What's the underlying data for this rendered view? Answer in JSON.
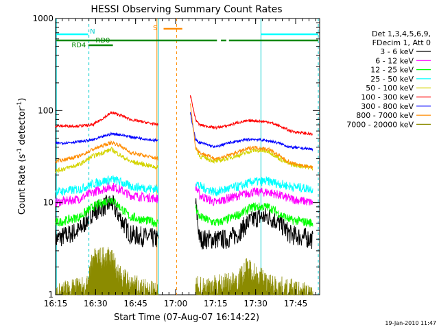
{
  "chart_data": {
    "type": "line",
    "title": "HESSI Observing Summary Count Rates",
    "xlabel": "Start Time (07-Aug-07 16:14:22)",
    "ylabel": "Count Rate (s",
    "ylabel_sup1": "-1",
    "ylabel_mid": " detector",
    "ylabel_sup2": "-1",
    "ylabel_end": ")",
    "y_scale": "log",
    "ylim": [
      1,
      1000
    ],
    "xlim_minutes": [
      16.0,
      115.0
    ],
    "x_ticks": [
      {
        "label": "16:15",
        "min": 16
      },
      {
        "label": "16:30",
        "min": 31
      },
      {
        "label": "16:45",
        "min": 46
      },
      {
        "label": "17:00",
        "min": 61
      },
      {
        "label": "17:15",
        "min": 76
      },
      {
        "label": "17:30",
        "min": 91
      },
      {
        "label": "17:45",
        "min": 106
      }
    ],
    "y_ticks": [
      {
        "label": "1",
        "value": 1
      },
      {
        "label": "10",
        "value": 10
      },
      {
        "label": "100",
        "value": 100
      },
      {
        "label": "1000",
        "value": 1000
      }
    ],
    "legend_header": [
      "Det 1,3,4,5,6,9,",
      "FDecim 1, Att 0"
    ],
    "legend_position": "right",
    "series": [
      {
        "name": "3 - 6 keV",
        "color": "#000000",
        "seg1": [
          [
            16,
            4
          ],
          [
            25,
            5
          ],
          [
            30,
            8
          ],
          [
            37,
            10
          ],
          [
            40,
            7
          ],
          [
            44,
            4.5
          ],
          [
            54.5,
            4
          ]
        ],
        "seg2": [
          [
            68.5,
            10
          ],
          [
            70,
            4
          ],
          [
            80,
            4
          ],
          [
            84,
            4.5
          ],
          [
            88,
            6
          ],
          [
            92,
            7
          ],
          [
            96,
            7
          ],
          [
            100,
            6
          ],
          [
            104,
            4.5
          ],
          [
            112.5,
            4
          ]
        ]
      },
      {
        "name": "6 - 12 keV",
        "color": "#ff00ff",
        "seg1": [
          [
            16,
            10
          ],
          [
            25,
            11
          ],
          [
            30,
            13
          ],
          [
            37,
            15
          ],
          [
            40,
            14
          ],
          [
            44,
            12
          ],
          [
            54.5,
            11
          ]
        ],
        "seg2": [
          [
            68.5,
            15
          ],
          [
            70,
            12
          ],
          [
            76,
            10
          ],
          [
            80,
            11
          ],
          [
            85,
            12
          ],
          [
            90,
            13
          ],
          [
            96,
            13
          ],
          [
            100,
            12
          ],
          [
            104,
            11
          ],
          [
            112.5,
            10
          ]
        ]
      },
      {
        "name": "12 - 25 keV",
        "color": "#00ff00",
        "seg1": [
          [
            16,
            6
          ],
          [
            25,
            7
          ],
          [
            30,
            9
          ],
          [
            37,
            11
          ],
          [
            40,
            9
          ],
          [
            44,
            7
          ],
          [
            54.5,
            6
          ]
        ],
        "seg2": [
          [
            68.5,
            9
          ],
          [
            70,
            7
          ],
          [
            76,
            6
          ],
          [
            80,
            6.5
          ],
          [
            85,
            7.5
          ],
          [
            90,
            9
          ],
          [
            96,
            9
          ],
          [
            100,
            7.5
          ],
          [
            104,
            6.5
          ],
          [
            112.5,
            6
          ]
        ]
      },
      {
        "name": "25 - 50 keV",
        "color": "#00ffff",
        "seg1": [
          [
            16,
            13
          ],
          [
            25,
            14
          ],
          [
            30,
            16
          ],
          [
            37,
            18
          ],
          [
            40,
            17
          ],
          [
            44,
            15
          ],
          [
            54.5,
            14
          ]
        ],
        "seg2": [
          [
            68.5,
            17
          ],
          [
            70,
            15
          ],
          [
            76,
            13
          ],
          [
            80,
            14
          ],
          [
            85,
            15
          ],
          [
            90,
            17
          ],
          [
            96,
            17
          ],
          [
            100,
            16
          ],
          [
            104,
            15
          ],
          [
            112.5,
            14
          ]
        ]
      },
      {
        "name": "50 - 100 keV",
        "color": "#d4d400",
        "seg1": [
          [
            16,
            22
          ],
          [
            25,
            26
          ],
          [
            30,
            32
          ],
          [
            37,
            38
          ],
          [
            40,
            33
          ],
          [
            44,
            28
          ],
          [
            54.5,
            24
          ]
        ],
        "seg2": [
          [
            68.5,
            40
          ],
          [
            70,
            32
          ],
          [
            76,
            28
          ],
          [
            80,
            30
          ],
          [
            85,
            33
          ],
          [
            90,
            37
          ],
          [
            96,
            36
          ],
          [
            100,
            30
          ],
          [
            104,
            26
          ],
          [
            112.5,
            24
          ]
        ]
      },
      {
        "name": "100 - 300 keV",
        "color": "#ff0000",
        "seg1": [
          [
            16,
            68
          ],
          [
            25,
            68
          ],
          [
            30,
            70
          ],
          [
            37,
            95
          ],
          [
            40,
            90
          ],
          [
            44,
            80
          ],
          [
            54.5,
            70
          ]
        ],
        "seg2": [
          [
            66.5,
            150
          ],
          [
            68.5,
            80
          ],
          [
            70,
            70
          ],
          [
            76,
            65
          ],
          [
            80,
            68
          ],
          [
            85,
            75
          ],
          [
            90,
            78
          ],
          [
            96,
            75
          ],
          [
            100,
            68
          ],
          [
            104,
            60
          ],
          [
            112.5,
            55
          ]
        ]
      },
      {
        "name": "300 - 800 keV",
        "color": "#0000ff",
        "seg1": [
          [
            16,
            44
          ],
          [
            25,
            46
          ],
          [
            30,
            48
          ],
          [
            37,
            56
          ],
          [
            40,
            55
          ],
          [
            44,
            52
          ],
          [
            54.5,
            47
          ]
        ],
        "seg2": [
          [
            66.5,
            95
          ],
          [
            68.5,
            48
          ],
          [
            70,
            45
          ],
          [
            76,
            40
          ],
          [
            80,
            44
          ],
          [
            85,
            47
          ],
          [
            90,
            49
          ],
          [
            96,
            47
          ],
          [
            100,
            44
          ],
          [
            104,
            40
          ],
          [
            112.5,
            38
          ]
        ]
      },
      {
        "name": "800 - 7000 keV",
        "color": "#ff8c00",
        "seg1": [
          [
            16,
            28
          ],
          [
            25,
            32
          ],
          [
            30,
            38
          ],
          [
            37,
            45
          ],
          [
            40,
            42
          ],
          [
            44,
            35
          ],
          [
            54.5,
            30
          ]
        ],
        "seg2": [
          [
            66.5,
            120
          ],
          [
            68.5,
            40
          ],
          [
            70,
            35
          ],
          [
            76,
            30
          ],
          [
            80,
            32
          ],
          [
            85,
            36
          ],
          [
            90,
            40
          ],
          [
            96,
            38
          ],
          [
            100,
            32
          ],
          [
            104,
            27
          ],
          [
            112.5,
            24
          ]
        ]
      },
      {
        "name": "7000 - 20000 keV",
        "color": "#8b8b00",
        "seg1": [
          [
            16,
            1
          ],
          [
            25,
            1.2
          ],
          [
            28,
            1.2
          ],
          [
            30,
            2.5
          ],
          [
            37,
            2.5
          ],
          [
            40,
            1.6
          ],
          [
            44,
            1.3
          ],
          [
            54.5,
            1
          ]
        ],
        "seg2": [
          [
            68.5,
            1.2
          ],
          [
            70,
            1.2
          ],
          [
            80,
            1.3
          ],
          [
            85,
            1.5
          ],
          [
            88,
            2
          ],
          [
            92,
            1.6
          ],
          [
            96,
            1.3
          ],
          [
            100,
            1.2
          ],
          [
            112.5,
            1
          ]
        ]
      }
    ],
    "annotations": {
      "saa_label": "S",
      "night_label": "N",
      "rd_labels": [
        "RD4",
        "RD0"
      ]
    },
    "footer_timestamp": "19-Jan-2010 11:47"
  }
}
